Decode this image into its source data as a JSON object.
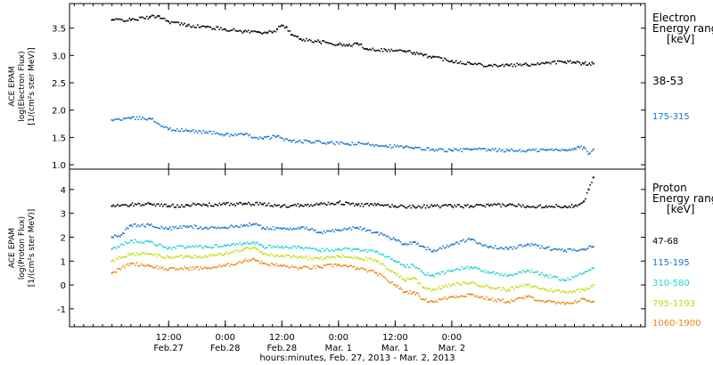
{
  "chart_data": [
    {
      "type": "scatter",
      "panel": "electron",
      "ylabel_lines": [
        "ACE EPAM",
        "log(Electron Flux)",
        "[1/(cm²s ster MeV)]"
      ],
      "ylim": [
        0.92,
        3.95
      ],
      "yticks": [
        1.0,
        1.5,
        2.0,
        2.5,
        3.0,
        3.5
      ],
      "ytick_labels": [
        "1.0",
        "1.5",
        "2.0",
        "2.5",
        "3.0",
        "3.5"
      ],
      "legend_title": [
        "Electron",
        "Energy range",
        "[keV]"
      ],
      "series": [
        {
          "name": "38-53",
          "color": "#000000",
          "points": [
            [
              0,
              3.65
            ],
            [
              4,
              3.65
            ],
            [
              8,
              3.7
            ],
            [
              10,
              3.72
            ],
            [
              12,
              3.62
            ],
            [
              16,
              3.55
            ],
            [
              20,
              3.52
            ],
            [
              24,
              3.48
            ],
            [
              28,
              3.44
            ],
            [
              31,
              3.43
            ],
            [
              33,
              3.42
            ],
            [
              34,
              3.42
            ],
            [
              35,
              3.48
            ],
            [
              36,
              3.55
            ],
            [
              37,
              3.52
            ],
            [
              38,
              3.38
            ],
            [
              40,
              3.3
            ],
            [
              44,
              3.25
            ],
            [
              48,
              3.2
            ],
            [
              50,
              3.18
            ],
            [
              52,
              3.22
            ],
            [
              54,
              3.12
            ],
            [
              58,
              3.1
            ],
            [
              62,
              3.08
            ],
            [
              64,
              3.05
            ],
            [
              66,
              3.0
            ],
            [
              68,
              2.98
            ],
            [
              72,
              2.9
            ],
            [
              76,
              2.85
            ],
            [
              80,
              2.82
            ],
            [
              84,
              2.82
            ],
            [
              88,
              2.83
            ],
            [
              92,
              2.87
            ],
            [
              96,
              2.88
            ],
            [
              98,
              2.87
            ],
            [
              100,
              2.85
            ],
            [
              102,
              2.85
            ]
          ]
        },
        {
          "name": "175-315",
          "color": "#1a76d2",
          "points": [
            [
              0,
              1.82
            ],
            [
              4,
              1.85
            ],
            [
              8,
              1.85
            ],
            [
              12,
              1.65
            ],
            [
              16,
              1.62
            ],
            [
              20,
              1.6
            ],
            [
              24,
              1.55
            ],
            [
              28,
              1.55
            ],
            [
              32,
              1.48
            ],
            [
              35,
              1.52
            ],
            [
              38,
              1.43
            ],
            [
              42,
              1.42
            ],
            [
              46,
              1.4
            ],
            [
              50,
              1.38
            ],
            [
              54,
              1.38
            ],
            [
              58,
              1.35
            ],
            [
              62,
              1.32
            ],
            [
              64,
              1.3
            ],
            [
              68,
              1.28
            ],
            [
              72,
              1.26
            ],
            [
              76,
              1.28
            ],
            [
              80,
              1.27
            ],
            [
              84,
              1.26
            ],
            [
              88,
              1.26
            ],
            [
              92,
              1.27
            ],
            [
              96,
              1.27
            ],
            [
              98,
              1.3
            ],
            [
              100,
              1.32
            ],
            [
              101,
              1.2
            ],
            [
              102,
              1.28
            ]
          ]
        }
      ]
    },
    {
      "type": "scatter",
      "panel": "proton",
      "ylabel_lines": [
        "ACE EPAM",
        "log(Proton Flux)",
        "[1/(cm²s ster MeV)]"
      ],
      "ylim": [
        -1.75,
        4.85
      ],
      "yticks": [
        -1,
        0,
        1,
        2,
        3,
        4
      ],
      "ytick_labels": [
        "-1",
        "0",
        "1",
        "2",
        "3",
        "4"
      ],
      "legend_title": [
        "Proton",
        "Energy range",
        "[keV]"
      ],
      "series": [
        {
          "name": "47-68",
          "color": "#000000",
          "points": [
            [
              0,
              3.3
            ],
            [
              4,
              3.35
            ],
            [
              8,
              3.4
            ],
            [
              12,
              3.3
            ],
            [
              16,
              3.35
            ],
            [
              20,
              3.35
            ],
            [
              24,
              3.38
            ],
            [
              28,
              3.4
            ],
            [
              32,
              3.38
            ],
            [
              36,
              3.3
            ],
            [
              40,
              3.35
            ],
            [
              44,
              3.38
            ],
            [
              48,
              3.45
            ],
            [
              52,
              3.35
            ],
            [
              56,
              3.35
            ],
            [
              60,
              3.3
            ],
            [
              64,
              3.28
            ],
            [
              68,
              3.3
            ],
            [
              72,
              3.3
            ],
            [
              76,
              3.3
            ],
            [
              80,
              3.32
            ],
            [
              84,
              3.35
            ],
            [
              88,
              3.3
            ],
            [
              92,
              3.3
            ],
            [
              96,
              3.3
            ],
            [
              98,
              3.3
            ],
            [
              100,
              3.5
            ],
            [
              101,
              4.0
            ],
            [
              102,
              4.5
            ]
          ]
        },
        {
          "name": "115-195",
          "color": "#1a76d2",
          "points": [
            [
              0,
              2.0
            ],
            [
              2,
              2.1
            ],
            [
              4,
              2.5
            ],
            [
              8,
              2.5
            ],
            [
              12,
              2.35
            ],
            [
              16,
              2.45
            ],
            [
              20,
              2.4
            ],
            [
              24,
              2.4
            ],
            [
              28,
              2.5
            ],
            [
              30,
              2.55
            ],
            [
              32,
              2.4
            ],
            [
              36,
              2.35
            ],
            [
              40,
              2.4
            ],
            [
              44,
              2.2
            ],
            [
              48,
              2.3
            ],
            [
              52,
              2.4
            ],
            [
              56,
              2.2
            ],
            [
              60,
              1.9
            ],
            [
              62,
              1.7
            ],
            [
              64,
              1.8
            ],
            [
              66,
              1.6
            ],
            [
              68,
              1.4
            ],
            [
              72,
              1.7
            ],
            [
              76,
              1.9
            ],
            [
              80,
              1.6
            ],
            [
              84,
              1.5
            ],
            [
              88,
              1.7
            ],
            [
              92,
              1.55
            ],
            [
              96,
              1.45
            ],
            [
              100,
              1.5
            ],
            [
              102,
              1.6
            ]
          ]
        },
        {
          "name": "310-580",
          "color": "#22d4d0",
          "points": [
            [
              0,
              1.5
            ],
            [
              4,
              1.85
            ],
            [
              8,
              1.8
            ],
            [
              12,
              1.55
            ],
            [
              16,
              1.6
            ],
            [
              20,
              1.6
            ],
            [
              24,
              1.65
            ],
            [
              28,
              1.75
            ],
            [
              30,
              1.8
            ],
            [
              32,
              1.6
            ],
            [
              36,
              1.6
            ],
            [
              40,
              1.55
            ],
            [
              44,
              1.45
            ],
            [
              48,
              1.5
            ],
            [
              52,
              1.5
            ],
            [
              56,
              1.4
            ],
            [
              60,
              1.0
            ],
            [
              62,
              0.8
            ],
            [
              64,
              0.8
            ],
            [
              66,
              0.5
            ],
            [
              68,
              0.4
            ],
            [
              72,
              0.6
            ],
            [
              76,
              0.75
            ],
            [
              80,
              0.5
            ],
            [
              84,
              0.4
            ],
            [
              88,
              0.6
            ],
            [
              92,
              0.4
            ],
            [
              96,
              0.2
            ],
            [
              100,
              0.5
            ],
            [
              102,
              0.7
            ]
          ]
        },
        {
          "name": "795-1193",
          "color": "#c2dc10",
          "points": [
            [
              0,
              1.0
            ],
            [
              4,
              1.3
            ],
            [
              8,
              1.3
            ],
            [
              12,
              1.15
            ],
            [
              16,
              1.2
            ],
            [
              20,
              1.2
            ],
            [
              24,
              1.3
            ],
            [
              28,
              1.5
            ],
            [
              30,
              1.55
            ],
            [
              32,
              1.3
            ],
            [
              36,
              1.2
            ],
            [
              40,
              1.2
            ],
            [
              44,
              1.1
            ],
            [
              48,
              1.2
            ],
            [
              52,
              1.15
            ],
            [
              56,
              1.0
            ],
            [
              60,
              0.5
            ],
            [
              62,
              0.2
            ],
            [
              64,
              0.3
            ],
            [
              66,
              -0.1
            ],
            [
              68,
              -0.2
            ],
            [
              72,
              0.0
            ],
            [
              76,
              0.1
            ],
            [
              80,
              -0.1
            ],
            [
              84,
              -0.2
            ],
            [
              88,
              0.0
            ],
            [
              92,
              -0.2
            ],
            [
              96,
              -0.3
            ],
            [
              100,
              -0.2
            ],
            [
              102,
              0.0
            ]
          ]
        },
        {
          "name": "1060-1900",
          "color": "#f08410",
          "points": [
            [
              0,
              0.5
            ],
            [
              4,
              0.9
            ],
            [
              8,
              0.8
            ],
            [
              12,
              0.65
            ],
            [
              16,
              0.7
            ],
            [
              20,
              0.7
            ],
            [
              24,
              0.8
            ],
            [
              28,
              1.0
            ],
            [
              30,
              1.1
            ],
            [
              32,
              0.9
            ],
            [
              36,
              0.8
            ],
            [
              40,
              0.7
            ],
            [
              44,
              0.75
            ],
            [
              48,
              0.85
            ],
            [
              52,
              0.7
            ],
            [
              56,
              0.5
            ],
            [
              60,
              0.0
            ],
            [
              62,
              -0.3
            ],
            [
              64,
              -0.3
            ],
            [
              66,
              -0.6
            ],
            [
              68,
              -0.7
            ],
            [
              72,
              -0.5
            ],
            [
              76,
              -0.4
            ],
            [
              80,
              -0.6
            ],
            [
              84,
              -0.7
            ],
            [
              88,
              -0.5
            ],
            [
              92,
              -0.7
            ],
            [
              96,
              -0.8
            ],
            [
              100,
              -0.6
            ],
            [
              102,
              -0.7
            ]
          ]
        }
      ]
    }
  ],
  "x_axis": {
    "range_hours": [
      -9,
      113
    ],
    "ticks": [
      {
        "hour": 12,
        "time": "12:00",
        "date": "Feb.27"
      },
      {
        "hour": 24,
        "time": "0:00",
        "date": "Feb.28"
      },
      {
        "hour": 36,
        "time": "12:00",
        "date": "Feb.28"
      },
      {
        "hour": 48,
        "time": "0:00",
        "date": "Mar. 1"
      },
      {
        "hour": 60,
        "time": "12:00",
        "date": "Mar. 1"
      },
      {
        "hour": 72,
        "time": "0:00",
        "date": "Mar. 2"
      }
    ],
    "label": "hours:minutes, Feb. 27, 2013 - Mar.  2, 2013"
  }
}
